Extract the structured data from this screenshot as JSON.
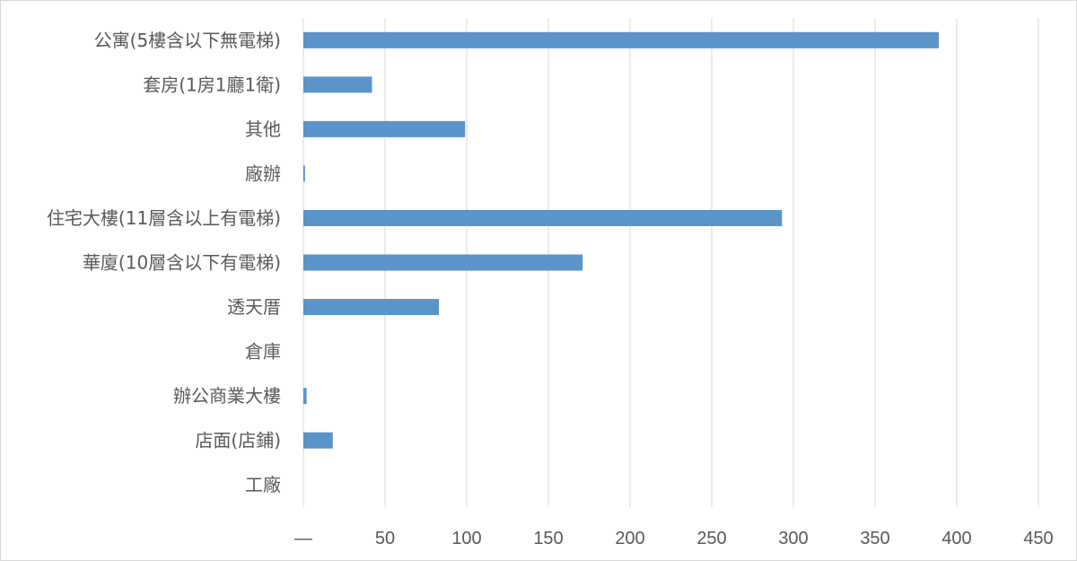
{
  "chart_data": {
    "type": "bar",
    "orientation": "horizontal",
    "categories": [
      "公寓(5樓含以下無電梯)",
      "套房(1房1廳1衛)",
      "其他",
      "廠辦",
      "住宅大樓(11層含以上有電梯)",
      "華廈(10層含以下有電梯)",
      "透天厝",
      "倉庫",
      "辦公商業大樓",
      "店面(店鋪)",
      "工廠"
    ],
    "values": [
      389,
      42,
      99,
      1,
      293,
      171,
      83,
      0,
      2,
      18,
      0
    ],
    "xlim": [
      0,
      450
    ],
    "x_ticks": [
      0,
      50,
      100,
      150,
      200,
      250,
      300,
      350,
      400,
      450
    ],
    "x_tick_labels": [
      "—",
      "50",
      "100",
      "150",
      "200",
      "250",
      "300",
      "350",
      "400",
      "450"
    ],
    "grid": true,
    "bar_color": "#5b94c9",
    "grid_color": "#d9d9d9"
  }
}
